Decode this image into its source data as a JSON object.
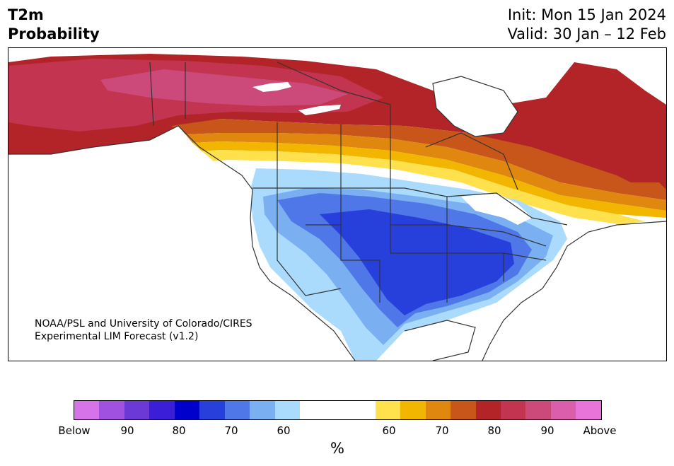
{
  "title": {
    "line1": "T2m",
    "line2": "Probability"
  },
  "run": {
    "init": "Init: Mon 15 Jan 2024",
    "valid": "Valid: 30 Jan – 12 Feb"
  },
  "credit": {
    "line1": "NOAA/PSL and University of Colorado/CIRES",
    "line2": "Experimental LIM Forecast (v1.2)"
  },
  "colorbar": {
    "units": "%",
    "colors": [
      "#d673e8",
      "#a151e0",
      "#6c38d6",
      "#3a1fd6",
      "#0000cd",
      "#2740dc",
      "#5077e8",
      "#7aaff2",
      "#aadbfc",
      "#ffffff",
      "#ffe04d",
      "#f2b600",
      "#e0870f",
      "#c8561b",
      "#b32428",
      "#c23450",
      "#cc4a7a",
      "#db5eaa",
      "#e874d9"
    ],
    "tick_labels": [
      "Below",
      "90",
      "80",
      "70",
      "60",
      "60",
      "70",
      "80",
      "90",
      "Above"
    ]
  },
  "map": {
    "legend_categories": {
      "cold": [
        "#7aaff2",
        "#5077e8",
        "#2740dc"
      ],
      "light_cold": "#aadbfc",
      "neutral": "#ffffff",
      "warm": [
        "#ffe04d",
        "#f2b600",
        "#e0870f",
        "#c8561b",
        "#b32428",
        "#c23450",
        "#cc4a7a"
      ]
    }
  }
}
